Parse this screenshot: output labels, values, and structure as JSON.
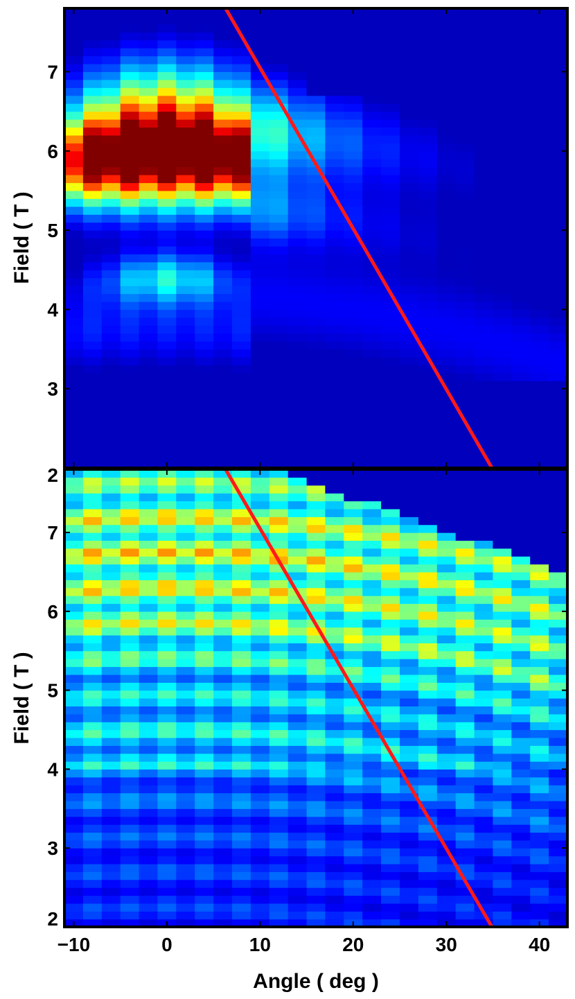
{
  "chart_data": [
    {
      "type": "heatmap",
      "panel": "top",
      "colormap": "jet",
      "title": "",
      "xlabel": "",
      "ylabel": "Field ( T )",
      "xlim": [
        -11,
        43
      ],
      "ylim": [
        2,
        7.8
      ],
      "xticks": [
        -10,
        0,
        10,
        20,
        30,
        40
      ],
      "xtick_labels_shown": false,
      "yticks": [
        2,
        3,
        4,
        5,
        6,
        7
      ],
      "ytick_labels": [
        "2",
        "3",
        "4",
        "5",
        "6",
        "7"
      ],
      "grid": false,
      "angle_step_deg": 2,
      "field_step_T": 0.1,
      "maximum": {
        "angle": 0,
        "field": 6.25
      },
      "fit_line": {
        "color": "#ff1a1a",
        "points": [
          {
            "angle": 6.3,
            "field": 7.8
          },
          {
            "angle": 34.9,
            "field": 2.0
          }
        ]
      }
    },
    {
      "type": "heatmap",
      "panel": "bottom",
      "colormap": "jet",
      "title": "",
      "xlabel": "Angle ( deg )",
      "ylabel": "Field ( T )",
      "xlim": [
        -11,
        43
      ],
      "ylim": [
        2,
        7.8
      ],
      "xticks": [
        -10,
        0,
        10,
        20,
        30,
        40
      ],
      "xtick_labels": [
        "−10",
        "0",
        "10",
        "20",
        "30",
        "40"
      ],
      "yticks": [
        2,
        3,
        4,
        5,
        6,
        7
      ],
      "ytick_labels": [
        "2",
        "3",
        "4",
        "5",
        "6",
        "7"
      ],
      "grid": false,
      "angle_step_deg": 2,
      "field_step_T": 0.1,
      "data_upper_boundary": [
        {
          "angle": 11,
          "field": 7.8
        },
        {
          "angle": 43,
          "field": 6.5
        }
      ],
      "fit_line": {
        "color": "#ff1a1a",
        "points": [
          {
            "angle": 6.3,
            "field": 7.8
          },
          {
            "angle": 34.9,
            "field": 2.0
          }
        ]
      }
    }
  ]
}
